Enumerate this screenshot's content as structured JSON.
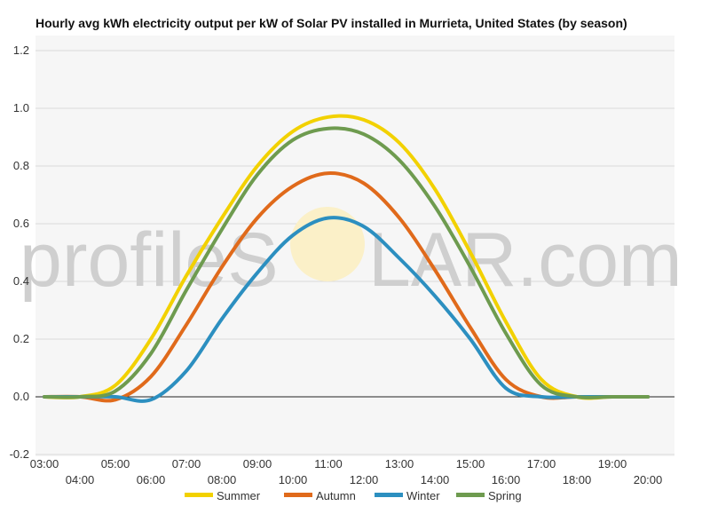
{
  "title": "Hourly avg kWh electricity output per kW of Solar PV installed in Murrieta, United States (by season)",
  "watermark": {
    "left": "profileS",
    "right": "LAR.com"
  },
  "chart_data": {
    "type": "line",
    "title": "Hourly avg kWh electricity output per kW of Solar PV installed in Murrieta, United States (by season)",
    "xlabel": "",
    "ylabel": "",
    "ylim": [
      -0.2,
      1.2
    ],
    "yticks": [
      "-0.2",
      "0.0",
      "0.2",
      "0.4",
      "0.6",
      "0.8",
      "1.0",
      "1.2"
    ],
    "xticks": [
      "03:00",
      "04:00",
      "05:00",
      "06:00",
      "07:00",
      "08:00",
      "09:00",
      "10:00",
      "11:00",
      "12:00",
      "13:00",
      "14:00",
      "15:00",
      "16:00",
      "17:00",
      "18:00",
      "19:00",
      "20:00"
    ],
    "x": [
      3,
      4,
      5,
      6,
      7,
      8,
      9,
      10,
      11,
      12,
      13,
      14,
      15,
      16,
      17,
      18,
      19,
      20
    ],
    "grid": true,
    "legend_position": "bottom",
    "series": [
      {
        "name": "Summer",
        "color": "#f2d100",
        "values": [
          0.0,
          0.0,
          0.04,
          0.2,
          0.42,
          0.62,
          0.8,
          0.92,
          0.97,
          0.96,
          0.88,
          0.72,
          0.5,
          0.26,
          0.06,
          0.0,
          0.0,
          0.0
        ]
      },
      {
        "name": "Autumn",
        "color": "#e06a1b",
        "values": [
          0.0,
          0.0,
          -0.01,
          0.07,
          0.25,
          0.45,
          0.62,
          0.73,
          0.775,
          0.74,
          0.62,
          0.44,
          0.24,
          0.06,
          0.0,
          0.0,
          0.0,
          0.0
        ]
      },
      {
        "name": "Winter",
        "color": "#2c8fc0",
        "values": [
          0.0,
          0.0,
          0.0,
          -0.01,
          0.09,
          0.27,
          0.43,
          0.56,
          0.62,
          0.59,
          0.48,
          0.35,
          0.2,
          0.03,
          0.0,
          0.0,
          0.0,
          0.0
        ]
      },
      {
        "name": "Spring",
        "color": "#6e9b4f",
        "values": [
          0.0,
          0.0,
          0.02,
          0.15,
          0.37,
          0.58,
          0.77,
          0.89,
          0.93,
          0.91,
          0.82,
          0.66,
          0.45,
          0.22,
          0.04,
          0.0,
          0.0,
          0.0
        ]
      }
    ]
  }
}
